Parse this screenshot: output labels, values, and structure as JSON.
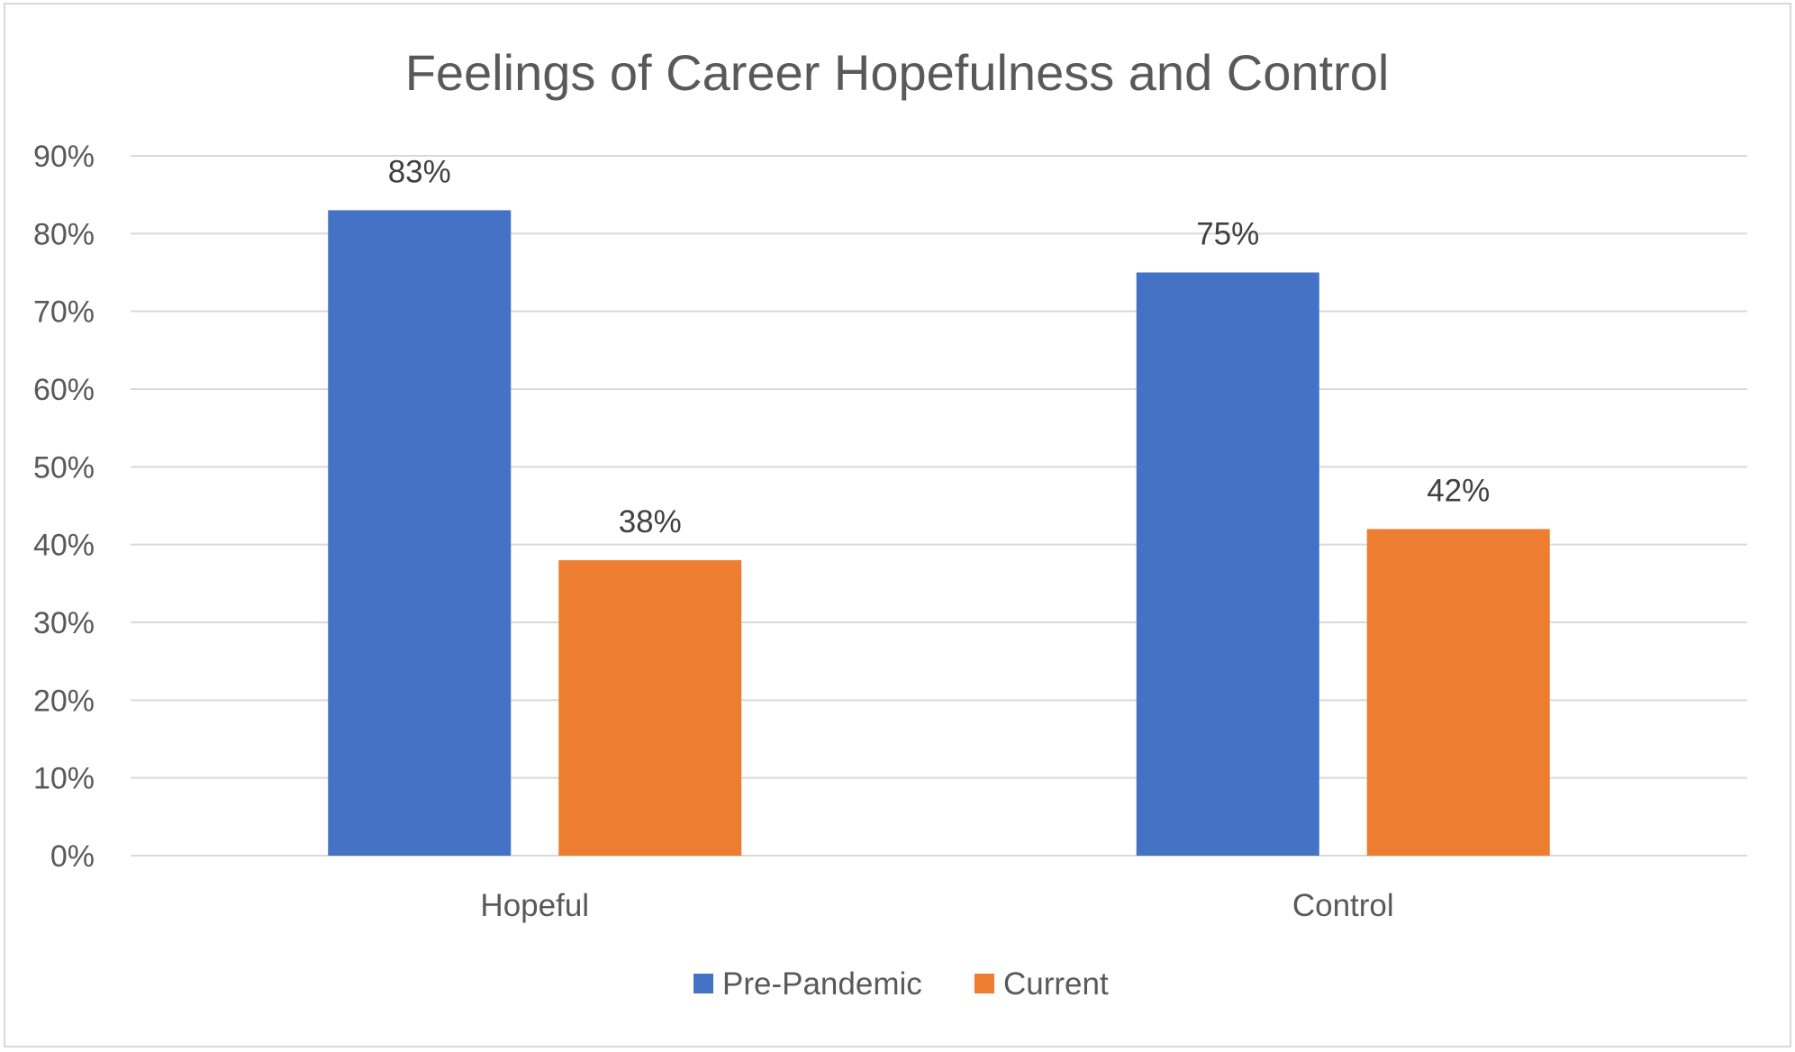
{
  "chart_data": {
    "type": "bar",
    "title": "Feelings of Career Hopefulness and Control",
    "xlabel": "",
    "ylabel": "",
    "categories": [
      "Hopeful",
      "Control"
    ],
    "series": [
      {
        "name": "Pre-Pandemic",
        "color": "#4472c4",
        "values": [
          83,
          75
        ],
        "labels": [
          "83%",
          "75%"
        ]
      },
      {
        "name": "Current",
        "color": "#ed7d31",
        "values": [
          38,
          42
        ],
        "labels": [
          "38%",
          "42%"
        ]
      }
    ],
    "ylim": [
      0,
      90
    ],
    "yticks": [
      0,
      10,
      20,
      30,
      40,
      50,
      60,
      70,
      80,
      90
    ],
    "ytick_labels": [
      "0%",
      "10%",
      "20%",
      "30%",
      "40%",
      "50%",
      "60%",
      "70%",
      "80%",
      "90%"
    ],
    "grid": true,
    "legend_position": "bottom"
  }
}
